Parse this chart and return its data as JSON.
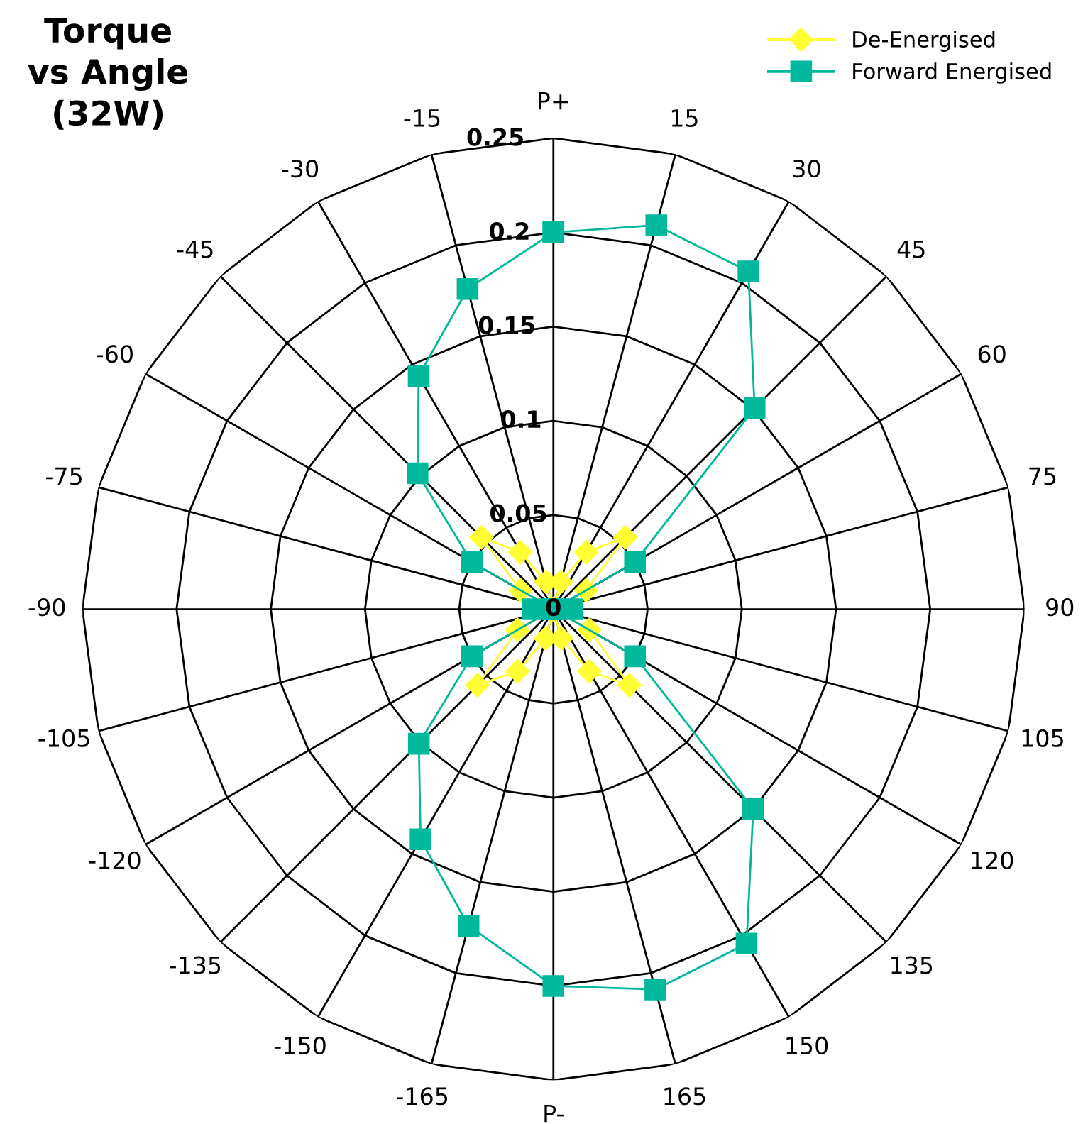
{
  "chart_data": {
    "type": "radar",
    "title": "Torque\nvs Angle\n(32W)",
    "categories": [
      "P+",
      "15",
      "30",
      "45",
      "60",
      "75",
      "90",
      "105",
      "120",
      "135",
      "150",
      "165",
      "P-",
      "-165",
      "-150",
      "-135",
      "-120",
      "-105",
      "-90",
      "-75",
      "-60",
      "-45",
      "-30",
      "-15"
    ],
    "series": [
      {
        "name": "De-Energised",
        "color": "#ffff33",
        "marker": "diamond",
        "values": [
          0,
          0.015,
          0.035,
          0.054,
          0.02,
          0,
          0,
          0,
          0.022,
          0.057,
          0.038,
          0.016,
          0,
          0.016,
          0.038,
          0.057,
          0.022,
          0,
          0,
          0,
          0.02,
          0.054,
          0.035,
          0.015
        ]
      },
      {
        "name": "Forward Energised",
        "color": "#00b89c",
        "marker": "square",
        "values": [
          0.2,
          0.211,
          0.207,
          0.151,
          0.05,
          0,
          0.01,
          0,
          0.05,
          0.15,
          0.205,
          0.209,
          0.2,
          0.174,
          0.141,
          0.101,
          0.05,
          0,
          0.011,
          0,
          0.05,
          0.102,
          0.143,
          0.176
        ]
      }
    ],
    "ylim": [
      0,
      0.25
    ],
    "yticks": [
      0,
      {
        "value": 0.05,
        "label": "0.05"
      },
      0.1,
      0.15,
      0.2,
      0.25
    ],
    "grid": true,
    "legend": "top right"
  }
}
